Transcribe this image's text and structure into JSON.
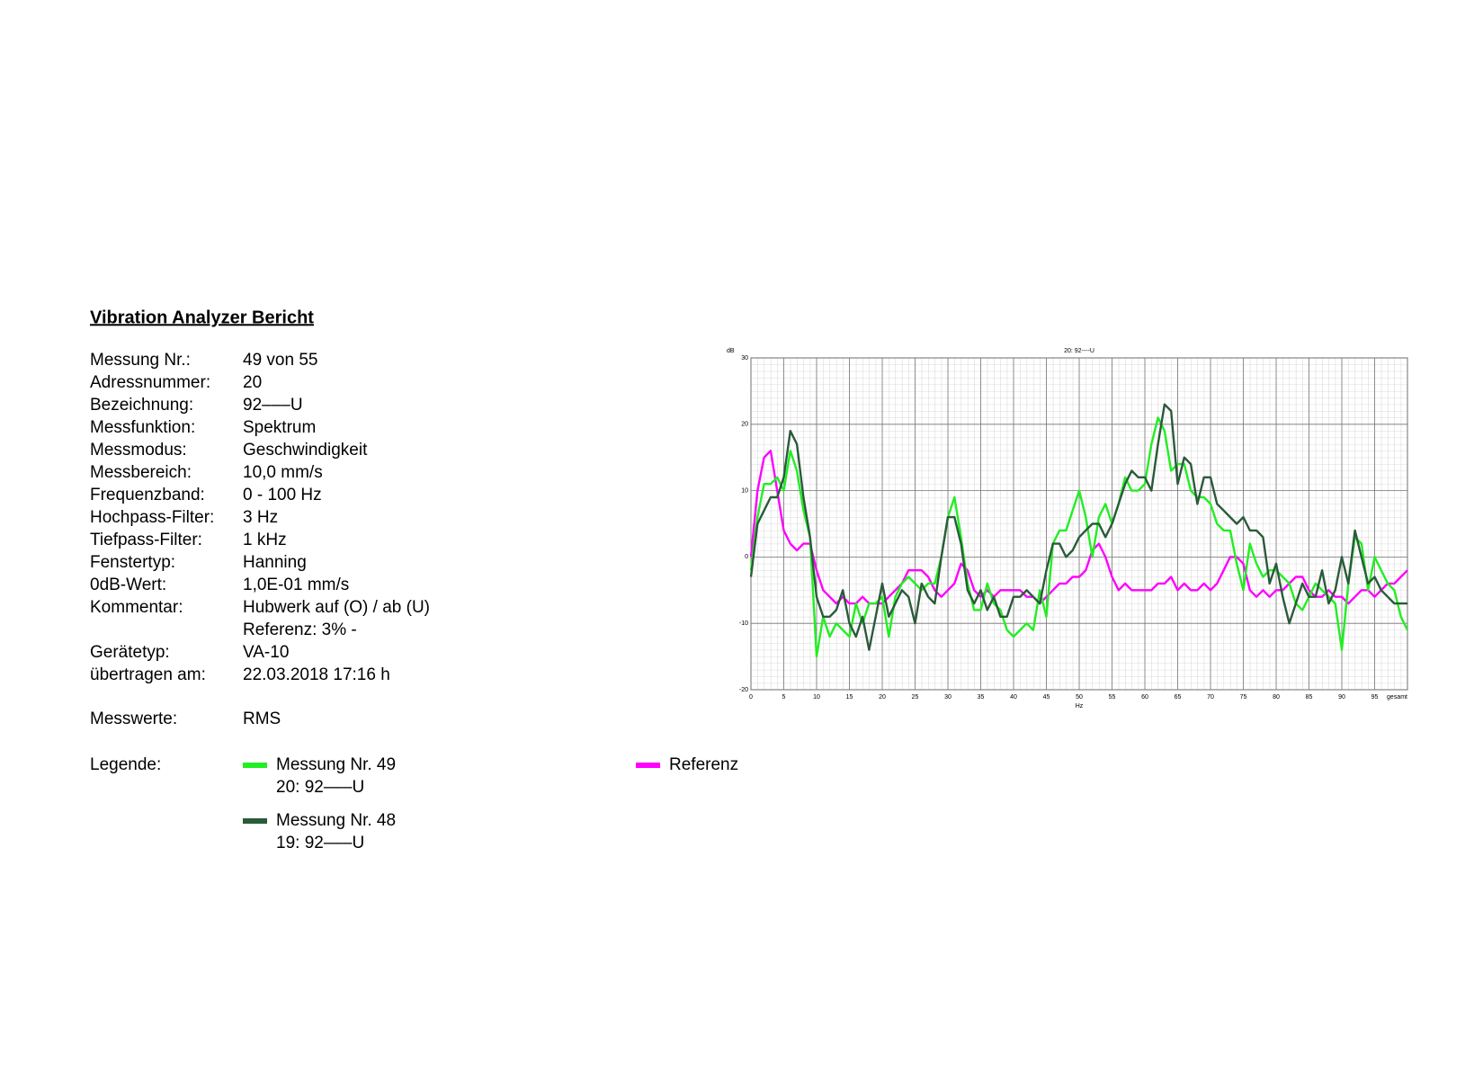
{
  "header": {
    "title": "Vibration Analyzer Bericht"
  },
  "fields": [
    {
      "label": "Messung Nr.:",
      "value": "49 von 55"
    },
    {
      "label": "Adressnummer:",
      "value": "20"
    },
    {
      "label": "Bezeichnung:",
      "value": "92–––U"
    },
    {
      "label": "Messfunktion:",
      "value": "Spektrum"
    },
    {
      "label": "Messmodus:",
      "value": "Geschwindigkeit"
    },
    {
      "label": "Messbereich:",
      "value": "10,0 mm/s"
    },
    {
      "label": "Frequenzband:",
      "value": "0 - 100 Hz"
    },
    {
      "label": "Hochpass-Filter:",
      "value": "3 Hz"
    },
    {
      "label": "Tiefpass-Filter:",
      "value": "1 kHz"
    },
    {
      "label": "Fenstertyp:",
      "value": "Hanning"
    },
    {
      "label": "0dB-Wert:",
      "value": "1,0E-01 mm/s"
    },
    {
      "label": "Kommentar:",
      "value": "Hubwerk auf (O) / ab (U)"
    },
    {
      "value": "Referenz: 3% -"
    },
    {
      "label": "Gerätetyp:",
      "value": "VA-10"
    },
    {
      "label": "übertragen am:",
      "value": "22.03.2018  17:16 h"
    }
  ],
  "measured": {
    "label": "Messwerte:",
    "value": "RMS"
  },
  "legend_label": "Legende:",
  "chart_data": {
    "type": "line",
    "title": "20: 92----U",
    "ylabel": "dB",
    "xlabel": "Hz",
    "xlim": [
      0,
      100
    ],
    "ylim": [
      -20,
      30
    ],
    "xticks": [
      0,
      5,
      10,
      15,
      20,
      25,
      30,
      35,
      40,
      45,
      50,
      55,
      60,
      65,
      70,
      75,
      80,
      85,
      90,
      95,
      {
        "value": 100,
        "label": "gesamt"
      }
    ],
    "yticks": [
      -20,
      -10,
      0,
      10,
      20,
      30
    ],
    "grid": true,
    "x": [
      0,
      1,
      2,
      3,
      4,
      5,
      6,
      7,
      8,
      9,
      10,
      11,
      12,
      13,
      14,
      15,
      16,
      17,
      18,
      19,
      20,
      21,
      22,
      23,
      24,
      25,
      26,
      27,
      28,
      29,
      30,
      31,
      32,
      33,
      34,
      35,
      36,
      37,
      38,
      39,
      40,
      41,
      42,
      43,
      44,
      45,
      46,
      47,
      48,
      49,
      50,
      51,
      52,
      53,
      54,
      55,
      56,
      57,
      58,
      59,
      60,
      61,
      62,
      63,
      64,
      65,
      66,
      67,
      68,
      69,
      70,
      71,
      72,
      73,
      74,
      75,
      76,
      77,
      78,
      79,
      80,
      81,
      82,
      83,
      84,
      85,
      86,
      87,
      88,
      89,
      90,
      91,
      92,
      93,
      94,
      95,
      96,
      97,
      98,
      99,
      100
    ],
    "series": [
      {
        "name": "Messung Nr. 49",
        "sublabel": "20: 92–––U",
        "color": "#22ee22",
        "values": [
          -2,
          6,
          11,
          11,
          12,
          10,
          16,
          13,
          7,
          3,
          -15,
          -9,
          -12,
          -10,
          -11,
          -12,
          -7,
          -10,
          -7,
          -7,
          -6,
          -12,
          -6,
          -4,
          -3,
          -4,
          -5,
          -4,
          -4,
          0,
          6,
          9,
          3,
          -4,
          -8,
          -8,
          -4,
          -7,
          -8,
          -11,
          -12,
          -11,
          -10,
          -11,
          -5,
          -9,
          2,
          4,
          4,
          7,
          10,
          6,
          0,
          6,
          8,
          5,
          8,
          12,
          10,
          10,
          11,
          17,
          21,
          19,
          13,
          14,
          14,
          10,
          9,
          9,
          8,
          5,
          4,
          4,
          -1,
          -5,
          2,
          -1,
          -3,
          -2,
          -2,
          -3,
          -4,
          -7,
          -8,
          -6,
          -4,
          -5,
          -6,
          -7,
          -14,
          -4,
          3,
          2,
          -5,
          0,
          -2,
          -4,
          -5,
          -9,
          -11
        ]
      },
      {
        "name": "Messung Nr. 48",
        "sublabel": "19: 92–––U",
        "color": "#2a5a3a",
        "values": [
          -3,
          5,
          7,
          9,
          9,
          12,
          19,
          17,
          9,
          3,
          -6,
          -9,
          -9,
          -8,
          -5,
          -10,
          -12,
          -9,
          -14,
          -9,
          -4,
          -9,
          -7,
          -5,
          -6,
          -10,
          -4,
          -6,
          -7,
          0,
          6,
          6,
          2,
          -5,
          -7,
          -5,
          -8,
          -6,
          -9,
          -9,
          -6,
          -6,
          -5,
          -6,
          -7,
          -2,
          2,
          2,
          0,
          1,
          3,
          4,
          5,
          5,
          3,
          5,
          8,
          11,
          13,
          12,
          12,
          10,
          17,
          23,
          22,
          11,
          15,
          14,
          8,
          12,
          12,
          8,
          7,
          6,
          5,
          6,
          4,
          4,
          3,
          -4,
          -1,
          -6,
          -10,
          -7,
          -4,
          -6,
          -6,
          -2,
          -7,
          -5,
          0,
          -4,
          4,
          0,
          -4,
          -3,
          -5,
          -6,
          -7,
          -7,
          -7
        ]
      },
      {
        "name": "Referenz",
        "color": "#ff00ff",
        "values": [
          0,
          10,
          15,
          16,
          10,
          4,
          2,
          1,
          2,
          2,
          -2,
          -5,
          -6,
          -7,
          -6,
          -7,
          -7,
          -6,
          -7,
          -7,
          -7,
          -6,
          -5,
          -4,
          -2,
          -2,
          -2,
          -3,
          -5,
          -6,
          -5,
          -4,
          -1,
          -2,
          -5,
          -6,
          -5,
          -6,
          -5,
          -5,
          -5,
          -5,
          -6,
          -6,
          -7,
          -6,
          -5,
          -4,
          -4,
          -3,
          -3,
          -2,
          1,
          2,
          0,
          -3,
          -5,
          -4,
          -5,
          -5,
          -5,
          -5,
          -4,
          -4,
          -3,
          -5,
          -4,
          -5,
          -5,
          -4,
          -5,
          -4,
          -2,
          0,
          0,
          -1,
          -5,
          -6,
          -5,
          -6,
          -5,
          -5,
          -4,
          -3,
          -3,
          -5,
          -6,
          -6,
          -5,
          -6,
          -6,
          -7,
          -6,
          -5,
          -5,
          -6,
          -5,
          -4,
          -4,
          -3,
          -2
        ]
      }
    ]
  }
}
